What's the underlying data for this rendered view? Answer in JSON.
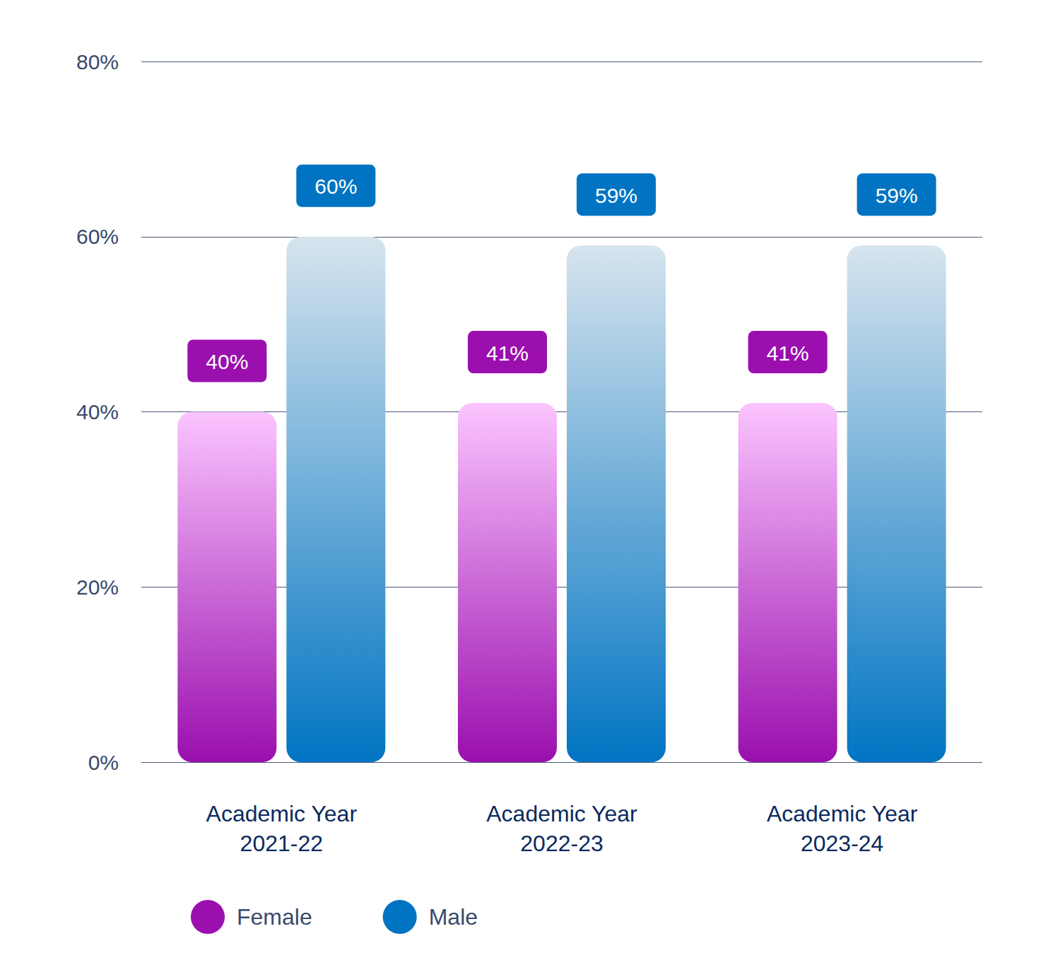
{
  "chart_data": {
    "type": "bar",
    "categories": [
      "Academic Year\n2021-22",
      "Academic Year\n2022-23",
      "Academic Year\n2023-24"
    ],
    "series": [
      {
        "name": "Female",
        "color": "#9a0fae",
        "values": [
          40,
          41,
          41
        ],
        "value_labels": [
          "40%",
          "41%",
          "41%"
        ]
      },
      {
        "name": "Male",
        "color": "#0074c2",
        "values": [
          60,
          59,
          59
        ],
        "value_labels": [
          "60%",
          "59%",
          "59%"
        ]
      }
    ],
    "ylim": [
      0,
      80
    ],
    "yticks": [
      {
        "value": 0,
        "label": "0%"
      },
      {
        "value": 20,
        "label": "20%"
      },
      {
        "value": 40,
        "label": "40%"
      },
      {
        "value": 60,
        "label": "60%"
      },
      {
        "value": 80,
        "label": "80%"
      }
    ],
    "grid": true,
    "data_labels": true,
    "legend": "bottom-left"
  }
}
